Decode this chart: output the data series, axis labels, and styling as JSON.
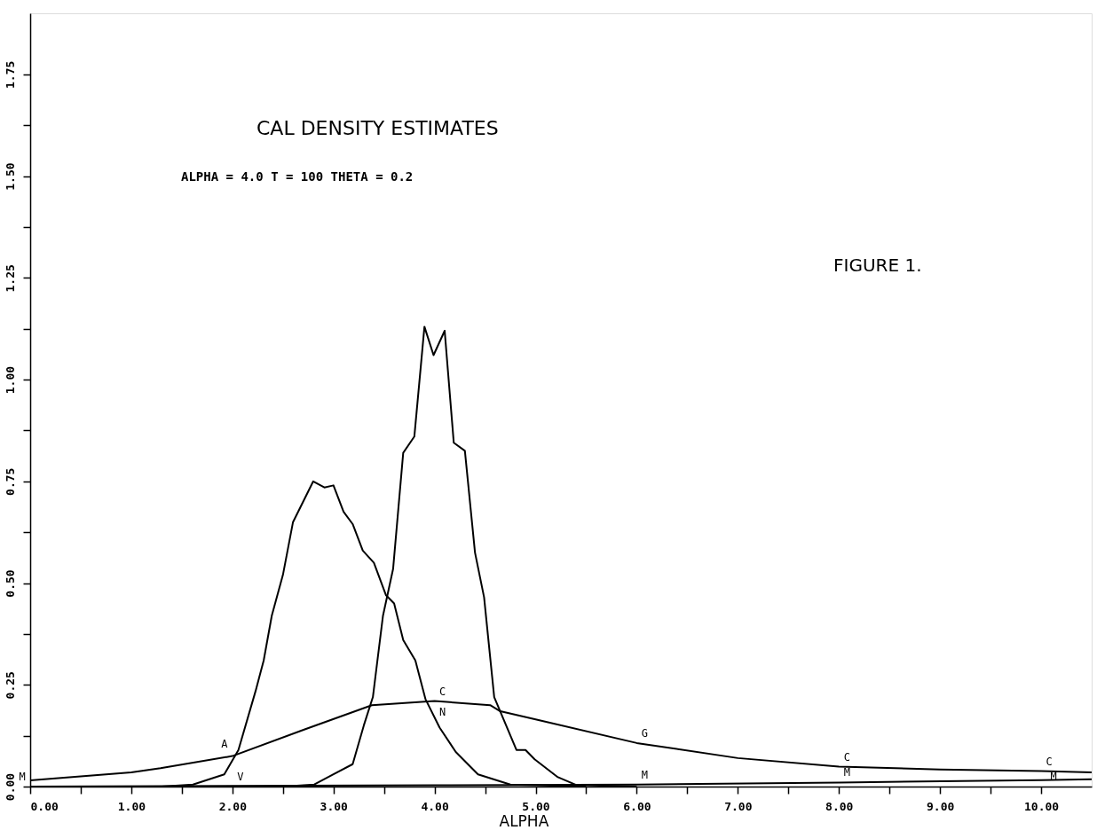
{
  "chart_data": {
    "type": "line",
    "title": "CAL DENSITY ESTIMATES",
    "xlabel": "ALPHA",
    "xlim": [
      0,
      10.5
    ],
    "ylim": [
      0,
      1.9
    ],
    "xticks": [
      {
        "value": 0,
        "label": "0.00"
      },
      {
        "value": 0.5,
        "label": null
      },
      {
        "value": 1,
        "label": "1.00"
      },
      {
        "value": 1.5,
        "label": null
      },
      {
        "value": 2,
        "label": "2.00"
      },
      {
        "value": 2.5,
        "label": null
      },
      {
        "value": 3,
        "label": "3.00"
      },
      {
        "value": 3.5,
        "label": null
      },
      {
        "value": 4,
        "label": "4.00"
      },
      {
        "value": 4.5,
        "label": null
      },
      {
        "value": 5,
        "label": "5.00"
      },
      {
        "value": 5.5,
        "label": null
      },
      {
        "value": 6,
        "label": "6.00"
      },
      {
        "value": 6.5,
        "label": null
      },
      {
        "value": 7,
        "label": "7.00"
      },
      {
        "value": 7.5,
        "label": null
      },
      {
        "value": 8,
        "label": "8.00"
      },
      {
        "value": 8.5,
        "label": null
      },
      {
        "value": 9,
        "label": "9.00"
      },
      {
        "value": 9.5,
        "label": null
      },
      {
        "value": 10,
        "label": "10.00"
      }
    ],
    "yticks": [
      {
        "value": 0,
        "label": "0.00"
      },
      {
        "value": 0.125,
        "label": null
      },
      {
        "value": 0.25,
        "label": "0.25"
      },
      {
        "value": 0.375,
        "label": null
      },
      {
        "value": 0.5,
        "label": "0.50"
      },
      {
        "value": 0.625,
        "label": null
      },
      {
        "value": 0.75,
        "label": "0.75"
      },
      {
        "value": 0.875,
        "label": null
      },
      {
        "value": 1,
        "label": "1.00"
      },
      {
        "value": 1.125,
        "label": null
      },
      {
        "value": 1.25,
        "label": "1.25"
      },
      {
        "value": 1.375,
        "label": null
      },
      {
        "value": 1.5,
        "label": "1.50"
      },
      {
        "value": 1.625,
        "label": null
      },
      {
        "value": 1.75,
        "label": "1.75"
      }
    ],
    "grid": false,
    "marker": "none",
    "line_style": "solid",
    "series": [
      {
        "color": "#000000",
        "x": [
          1.3,
          1.61,
          1.92,
          2.06,
          2.23,
          2.31,
          2.39,
          2.5,
          2.6,
          2.8,
          2.91,
          3.0,
          3.1,
          3.19,
          3.29,
          3.4,
          3.52,
          3.6,
          3.69,
          3.81,
          3.91,
          4.05,
          4.21,
          4.43,
          4.75,
          5.5
        ],
        "values": [
          0,
          0.005,
          0.03,
          0.09,
          0.235,
          0.31,
          0.42,
          0.52,
          0.65,
          0.75,
          0.735,
          0.74,
          0.675,
          0.645,
          0.58,
          0.55,
          0.47,
          0.45,
          0.36,
          0.31,
          0.215,
          0.145,
          0.085,
          0.03,
          0.005,
          0
        ]
      },
      {
        "color": "#000000",
        "x": [
          2.5,
          2.81,
          3.0,
          3.19,
          3.3,
          3.39,
          3.49,
          3.59,
          3.69,
          3.8,
          3.9,
          3.99,
          4.1,
          4.19,
          4.3,
          4.4,
          4.49,
          4.59,
          4.81,
          4.9,
          4.99,
          5.22,
          5.4,
          6.0
        ],
        "values": [
          0,
          0.005,
          0.03,
          0.055,
          0.15,
          0.22,
          0.42,
          0.535,
          0.82,
          0.86,
          1.13,
          1.06,
          1.12,
          0.845,
          0.825,
          0.575,
          0.465,
          0.22,
          0.09,
          0.09,
          0.067,
          0.023,
          0.004,
          0
        ]
      },
      {
        "color": "#000000",
        "x": [
          0,
          1,
          1.29,
          2,
          2.71,
          3.38,
          4,
          4.55,
          4.65,
          5,
          6,
          7,
          8,
          9,
          10,
          10.5
        ],
        "values": [
          0.015,
          0.035,
          0.045,
          0.075,
          0.14,
          0.2,
          0.21,
          0.2,
          0.185,
          0.165,
          0.107,
          0.07,
          0.049,
          0.042,
          0.038,
          0.035
        ]
      },
      {
        "color": "#000000",
        "x": [
          0,
          4,
          6,
          8,
          10,
          10.5
        ],
        "values": [
          0,
          0.003,
          0.005,
          0.01,
          0.016,
          0.018
        ]
      }
    ],
    "annotations": [
      "ALPHA = 4.0 T = 100 THETA = 0.2",
      "FIGURE 1.",
      {
        "text": "A",
        "x": 2,
        "y": 0.08
      },
      {
        "text": "V",
        "x": 2,
        "y": 0
      },
      {
        "text": "C",
        "x": 4,
        "y": 0.21
      },
      {
        "text": "N",
        "x": 4,
        "y": 0.16
      },
      {
        "text": "G",
        "x": 6,
        "y": 0.107
      },
      {
        "text": "C",
        "x": 8,
        "y": 0.049
      },
      {
        "text": "C",
        "x": 10,
        "y": 0.038
      },
      {
        "text": "M",
        "x": 0,
        "y": 0
      },
      {
        "text": "M",
        "x": 6,
        "y": 0.005
      },
      {
        "text": "M",
        "x": 8,
        "y": 0.01
      },
      {
        "text": "M",
        "x": 10,
        "y": 0.016
      }
    ]
  }
}
